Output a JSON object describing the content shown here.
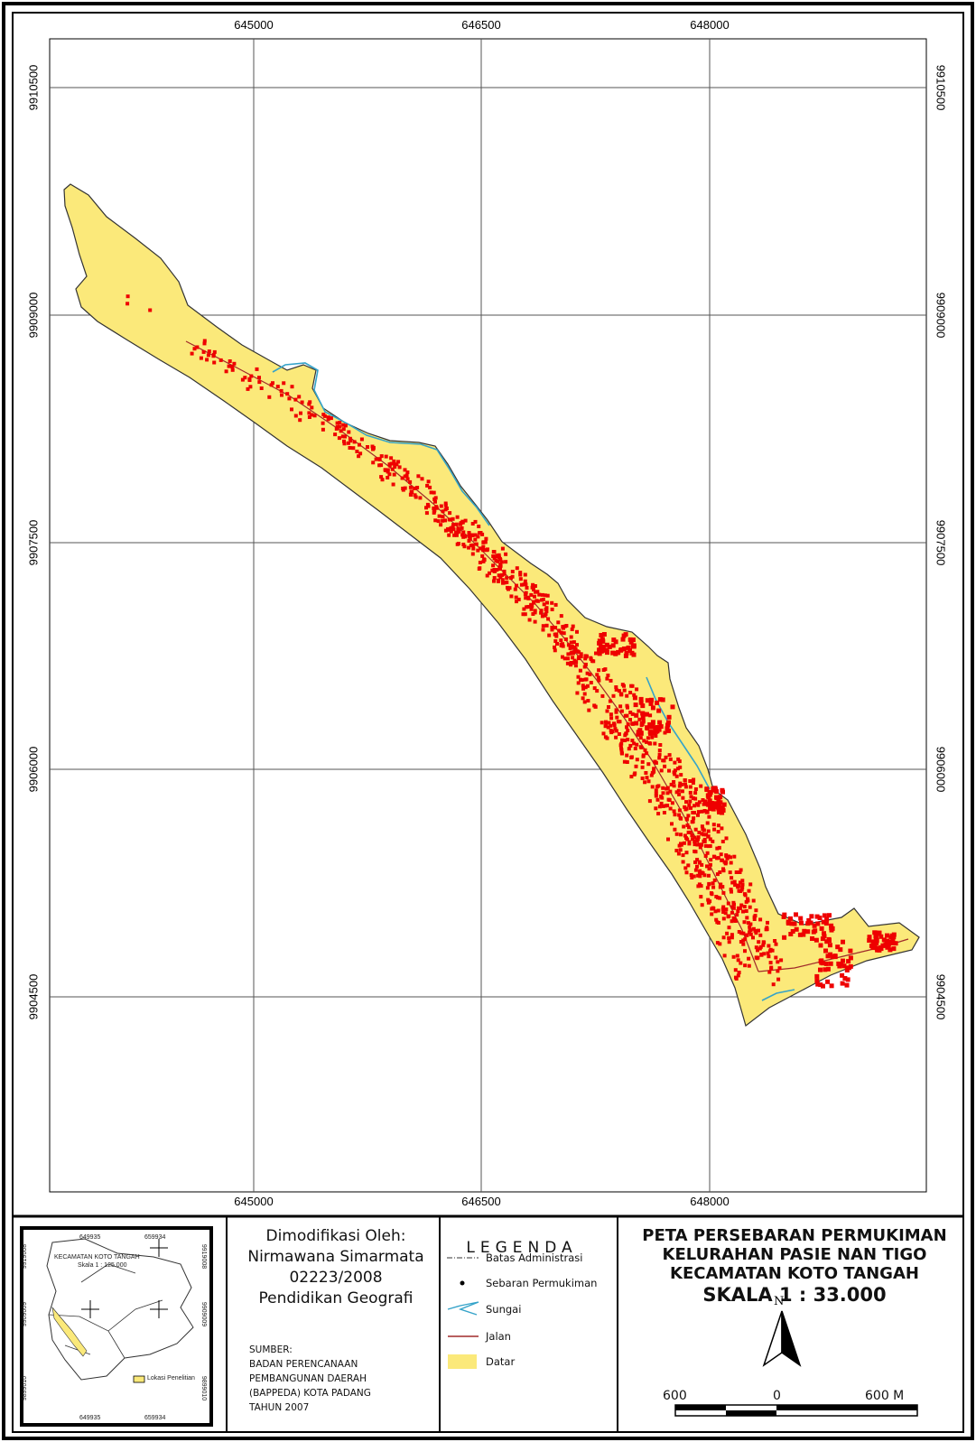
{
  "map": {
    "grid_x_labels": [
      "645000",
      "646500",
      "648000"
    ],
    "grid_y_labels": [
      "9910500",
      "9909000",
      "9907500",
      "9906000",
      "9904500"
    ]
  },
  "credit": {
    "lines": [
      "Dimodifikasi Oleh:",
      "Nirmawana Simarmata",
      "02223/2008",
      "Pendidikan Geografi"
    ]
  },
  "source": {
    "lines": [
      "SUMBER:",
      "BADAN PERENCANAAN",
      "PEMBANGUNAN DAERAH",
      "(BAPPEDA) KOTA PADANG",
      "TAHUN 2007"
    ]
  },
  "legend": {
    "title": "LEGENDA",
    "items": [
      "Batas Administrasi",
      "Sebaran Permukiman",
      "Sungai",
      "Jalan",
      "Datar"
    ]
  },
  "title": {
    "lines": [
      "PETA PERSEBARAN PERMUKIMAN",
      "KELURAHAN PASIE NAN TIGO",
      "KECAMATAN KOTO TANGAH"
    ],
    "scale": "SKALA 1 : 33.000"
  },
  "north": "N",
  "scalebar": {
    "left": "600",
    "mid": "0",
    "right": "600 M"
  },
  "inset": {
    "title": "KECAMATAN KOTO TANGAH",
    "scale": "Skala 1 : 125.000",
    "x_labels": [
      "649935",
      "659934"
    ],
    "y_labels": [
      "9919008",
      "9909009",
      "9899010"
    ],
    "legend": "Lokasi Penelitian"
  },
  "colors": {
    "datar": "#fbe97a",
    "settlement": "#ee0000",
    "river": "#35a3c9",
    "road": "#a02a2a"
  }
}
